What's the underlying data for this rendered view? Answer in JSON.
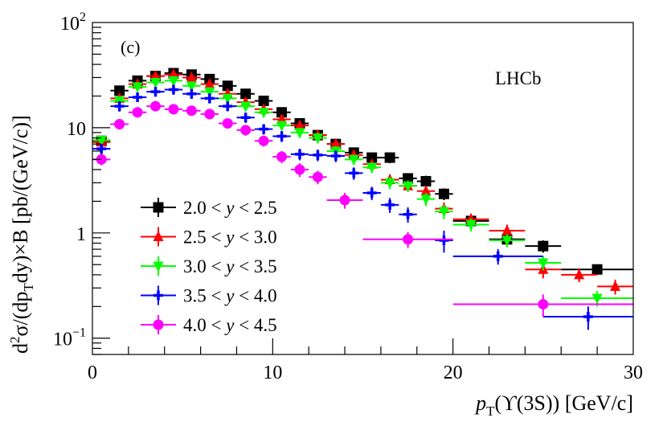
{
  "chart_data": {
    "type": "scatter",
    "panel_label": "(c)",
    "experiment_label": "LHCb",
    "xlabel": {
      "main": "p",
      "sub": "T",
      "rest": "(ϒ(3S)) [GeV/c]"
    },
    "ylabel": {
      "p1": "d",
      "sup": "2",
      "p2": "σ/(dp",
      "sub": "T",
      "p3": "dy)×B [pb/(GeV/c)]"
    },
    "xlim": [
      0,
      30
    ],
    "ylim": [
      0.07,
      100
    ],
    "yscale": "log",
    "x_ticks": [
      "0",
      "10",
      "20",
      "30"
    ],
    "y_ticks": [
      {
        "value": 100,
        "base": "10",
        "exp": "2"
      },
      {
        "value": 10,
        "base": "10",
        "exp": ""
      },
      {
        "value": 1,
        "base": "1",
        "exp": ""
      },
      {
        "value": 0.1,
        "base": "10",
        "exp": "−1"
      }
    ],
    "legend_position": "bottom-left",
    "series": [
      {
        "name": "2.0 < y < 2.5",
        "label_pre": "2.0 < ",
        "label_var": "y",
        "label_post": " < 2.5",
        "color": "#000000",
        "marker": "square",
        "points": [
          {
            "x": 0.5,
            "xerr": 0.5,
            "y": 7.5,
            "yerr": 0.7
          },
          {
            "x": 1.5,
            "xerr": 0.5,
            "y": 22.5,
            "yerr": 2.5
          },
          {
            "x": 2.5,
            "xerr": 0.5,
            "y": 28,
            "yerr": 3
          },
          {
            "x": 3.5,
            "xerr": 0.5,
            "y": 31,
            "yerr": 3
          },
          {
            "x": 4.5,
            "xerr": 0.5,
            "y": 33,
            "yerr": 3
          },
          {
            "x": 5.5,
            "xerr": 0.5,
            "y": 32,
            "yerr": 3
          },
          {
            "x": 6.5,
            "xerr": 0.5,
            "y": 29,
            "yerr": 3
          },
          {
            "x": 7.5,
            "xerr": 0.5,
            "y": 25,
            "yerr": 2.5
          },
          {
            "x": 8.5,
            "xerr": 0.5,
            "y": 21,
            "yerr": 2
          },
          {
            "x": 9.5,
            "xerr": 0.5,
            "y": 18,
            "yerr": 2
          },
          {
            "x": 10.5,
            "xerr": 0.5,
            "y": 14,
            "yerr": 1.5
          },
          {
            "x": 11.5,
            "xerr": 0.5,
            "y": 11,
            "yerr": 1.2
          },
          {
            "x": 12.5,
            "xerr": 0.5,
            "y": 8.5,
            "yerr": 1
          },
          {
            "x": 13.5,
            "xerr": 0.5,
            "y": 7,
            "yerr": 0.8
          },
          {
            "x": 14.5,
            "xerr": 0.5,
            "y": 5.8,
            "yerr": 0.7
          },
          {
            "x": 15.5,
            "xerr": 0.5,
            "y": 5.2,
            "yerr": 0.6
          },
          {
            "x": 16.5,
            "xerr": 0.5,
            "y": 5.2,
            "yerr": 0.6
          },
          {
            "x": 17.5,
            "xerr": 0.5,
            "y": 3.3,
            "yerr": 0.4
          },
          {
            "x": 18.5,
            "xerr": 0.5,
            "y": 3.1,
            "yerr": 0.4
          },
          {
            "x": 19.5,
            "xerr": 0.5,
            "y": 2.35,
            "yerr": 0.3
          },
          {
            "x": 21,
            "xerr": 1,
            "y": 1.3,
            "yerr": 0.18
          },
          {
            "x": 23,
            "xerr": 1,
            "y": 0.87,
            "yerr": 0.12
          },
          {
            "x": 25,
            "xerr": 1,
            "y": 0.75,
            "yerr": 0.1
          },
          {
            "x": 28,
            "xerr": 2,
            "y": 0.45,
            "yerr": 0.05
          }
        ]
      },
      {
        "name": "2.5 < y < 3.0",
        "label_pre": "2.5 < ",
        "label_var": "y",
        "label_post": " < 3.0",
        "color": "#ff0000",
        "marker": "triangle-up",
        "points": [
          {
            "x": 0.5,
            "xerr": 0.5,
            "y": 7.3,
            "yerr": 0.7
          },
          {
            "x": 1.5,
            "xerr": 0.5,
            "y": 19,
            "yerr": 2
          },
          {
            "x": 2.5,
            "xerr": 0.5,
            "y": 26,
            "yerr": 2.5
          },
          {
            "x": 3.5,
            "xerr": 0.5,
            "y": 31,
            "yerr": 3
          },
          {
            "x": 4.5,
            "xerr": 0.5,
            "y": 32,
            "yerr": 3
          },
          {
            "x": 5.5,
            "xerr": 0.5,
            "y": 30,
            "yerr": 3
          },
          {
            "x": 6.5,
            "xerr": 0.5,
            "y": 26,
            "yerr": 2.5
          },
          {
            "x": 7.5,
            "xerr": 0.5,
            "y": 21,
            "yerr": 2
          },
          {
            "x": 8.5,
            "xerr": 0.5,
            "y": 17.5,
            "yerr": 1.8
          },
          {
            "x": 9.5,
            "xerr": 0.5,
            "y": 15,
            "yerr": 1.5
          },
          {
            "x": 10.5,
            "xerr": 0.5,
            "y": 12,
            "yerr": 1.3
          },
          {
            "x": 11.5,
            "xerr": 0.5,
            "y": 10.5,
            "yerr": 1.1
          },
          {
            "x": 12.5,
            "xerr": 0.5,
            "y": 8.5,
            "yerr": 0.9
          },
          {
            "x": 13.5,
            "xerr": 0.5,
            "y": 7,
            "yerr": 0.8
          },
          {
            "x": 14.5,
            "xerr": 0.5,
            "y": 5.5,
            "yerr": 0.6
          },
          {
            "x": 15.5,
            "xerr": 0.5,
            "y": 4.5,
            "yerr": 0.5
          },
          {
            "x": 16.5,
            "xerr": 0.5,
            "y": 3.2,
            "yerr": 0.4
          },
          {
            "x": 17.5,
            "xerr": 0.5,
            "y": 2.8,
            "yerr": 0.35
          },
          {
            "x": 18.5,
            "xerr": 0.5,
            "y": 2.5,
            "yerr": 0.3
          },
          {
            "x": 19.5,
            "xerr": 0.5,
            "y": 1.7,
            "yerr": 0.25
          },
          {
            "x": 21,
            "xerr": 1,
            "y": 1.35,
            "yerr": 0.18
          },
          {
            "x": 23,
            "xerr": 1,
            "y": 1.05,
            "yerr": 0.15
          },
          {
            "x": 25,
            "xerr": 1,
            "y": 0.45,
            "yerr": 0.08
          },
          {
            "x": 27,
            "xerr": 1,
            "y": 0.4,
            "yerr": 0.06
          },
          {
            "x": 29,
            "xerr": 1,
            "y": 0.31,
            "yerr": 0.05
          }
        ]
      },
      {
        "name": "3.0 < y < 3.5",
        "label_pre": "3.0 < ",
        "label_var": "y",
        "label_post": " < 3.5",
        "color": "#00ff00",
        "marker": "triangle-down",
        "points": [
          {
            "x": 0.5,
            "xerr": 0.5,
            "y": 7.6,
            "yerr": 0.7
          },
          {
            "x": 1.5,
            "xerr": 0.5,
            "y": 18,
            "yerr": 2
          },
          {
            "x": 2.5,
            "xerr": 0.5,
            "y": 24.5,
            "yerr": 2.5
          },
          {
            "x": 3.5,
            "xerr": 0.5,
            "y": 27,
            "yerr": 2.8
          },
          {
            "x": 4.5,
            "xerr": 0.5,
            "y": 28,
            "yerr": 2.8
          },
          {
            "x": 5.5,
            "xerr": 0.5,
            "y": 25,
            "yerr": 2.5
          },
          {
            "x": 6.5,
            "xerr": 0.5,
            "y": 22,
            "yerr": 2.2
          },
          {
            "x": 7.5,
            "xerr": 0.5,
            "y": 19,
            "yerr": 2
          },
          {
            "x": 8.5,
            "xerr": 0.5,
            "y": 16,
            "yerr": 1.7
          },
          {
            "x": 9.5,
            "xerr": 0.5,
            "y": 14,
            "yerr": 1.5
          },
          {
            "x": 10.5,
            "xerr": 0.5,
            "y": 10.5,
            "yerr": 1.1
          },
          {
            "x": 11.5,
            "xerr": 0.5,
            "y": 9,
            "yerr": 1
          },
          {
            "x": 12.5,
            "xerr": 0.5,
            "y": 8,
            "yerr": 0.9
          },
          {
            "x": 13.5,
            "xerr": 0.5,
            "y": 6,
            "yerr": 0.7
          },
          {
            "x": 14.5,
            "xerr": 0.5,
            "y": 5,
            "yerr": 0.6
          },
          {
            "x": 15.5,
            "xerr": 0.5,
            "y": 4.2,
            "yerr": 0.5
          },
          {
            "x": 16.5,
            "xerr": 0.5,
            "y": 3,
            "yerr": 0.4
          },
          {
            "x": 17.5,
            "xerr": 0.5,
            "y": 2.8,
            "yerr": 0.35
          },
          {
            "x": 18.5,
            "xerr": 0.5,
            "y": 2.1,
            "yerr": 0.3
          },
          {
            "x": 19.5,
            "xerr": 0.5,
            "y": 1.6,
            "yerr": 0.25
          },
          {
            "x": 21,
            "xerr": 1,
            "y": 1.2,
            "yerr": 0.17
          },
          {
            "x": 23,
            "xerr": 1,
            "y": 0.85,
            "yerr": 0.12
          },
          {
            "x": 25,
            "xerr": 1,
            "y": 0.52,
            "yerr": 0.08
          },
          {
            "x": 28,
            "xerr": 2,
            "y": 0.24,
            "yerr": 0.04
          }
        ]
      },
      {
        "name": "3.5 < y < 4.0",
        "label_pre": "3.5 < ",
        "label_var": "y",
        "label_post": " < 4.0",
        "color": "#0000ff",
        "marker": "cross",
        "points": [
          {
            "x": 0.5,
            "xerr": 0.5,
            "y": 6.3,
            "yerr": 0.7
          },
          {
            "x": 1.5,
            "xerr": 0.5,
            "y": 16,
            "yerr": 1.8
          },
          {
            "x": 2.5,
            "xerr": 0.5,
            "y": 19.5,
            "yerr": 2
          },
          {
            "x": 3.5,
            "xerr": 0.5,
            "y": 22,
            "yerr": 2.3
          },
          {
            "x": 4.5,
            "xerr": 0.5,
            "y": 23,
            "yerr": 2.4
          },
          {
            "x": 5.5,
            "xerr": 0.5,
            "y": 21,
            "yerr": 2.2
          },
          {
            "x": 6.5,
            "xerr": 0.5,
            "y": 19,
            "yerr": 2
          },
          {
            "x": 7.5,
            "xerr": 0.5,
            "y": 16,
            "yerr": 1.7
          },
          {
            "x": 8.5,
            "xerr": 0.5,
            "y": 12.5,
            "yerr": 1.4
          },
          {
            "x": 9.5,
            "xerr": 0.5,
            "y": 9.7,
            "yerr": 1.1
          },
          {
            "x": 10.5,
            "xerr": 0.5,
            "y": 8.3,
            "yerr": 1
          },
          {
            "x": 11.5,
            "xerr": 0.5,
            "y": 5.6,
            "yerr": 0.7
          },
          {
            "x": 12.5,
            "xerr": 0.5,
            "y": 5.5,
            "yerr": 0.7
          },
          {
            "x": 13.5,
            "xerr": 0.5,
            "y": 5.4,
            "yerr": 0.7
          },
          {
            "x": 14.5,
            "xerr": 0.5,
            "y": 3.7,
            "yerr": 0.5
          },
          {
            "x": 15.5,
            "xerr": 0.5,
            "y": 2.4,
            "yerr": 0.35
          },
          {
            "x": 16.5,
            "xerr": 0.5,
            "y": 1.85,
            "yerr": 0.3
          },
          {
            "x": 17.5,
            "xerr": 0.5,
            "y": 1.5,
            "yerr": 0.25
          },
          {
            "x": 19.5,
            "xerr": 0.5,
            "y": 0.85,
            "yerr": 0.2
          },
          {
            "x": 22.5,
            "xerr": 2.5,
            "y": 0.6,
            "yerr": 0.1
          },
          {
            "x": 27.5,
            "xerr": 2.5,
            "y": 0.16,
            "yerr": 0.04
          }
        ]
      },
      {
        "name": "4.0 < y < 4.5",
        "label_pre": "4.0 < ",
        "label_var": "y",
        "label_post": " < 4.5",
        "color": "#ff00ff",
        "marker": "circle",
        "points": [
          {
            "x": 0.5,
            "xerr": 0.5,
            "y": 5,
            "yerr": 0.6
          },
          {
            "x": 1.5,
            "xerr": 0.5,
            "y": 10.8,
            "yerr": 1.2
          },
          {
            "x": 2.5,
            "xerr": 0.5,
            "y": 14,
            "yerr": 1.5
          },
          {
            "x": 3.5,
            "xerr": 0.5,
            "y": 16,
            "yerr": 1.7
          },
          {
            "x": 4.5,
            "xerr": 0.5,
            "y": 15,
            "yerr": 1.6
          },
          {
            "x": 5.5,
            "xerr": 0.5,
            "y": 14.5,
            "yerr": 1.5
          },
          {
            "x": 6.5,
            "xerr": 0.5,
            "y": 13.5,
            "yerr": 1.5
          },
          {
            "x": 7.5,
            "xerr": 0.5,
            "y": 11,
            "yerr": 1.2
          },
          {
            "x": 8.5,
            "xerr": 0.5,
            "y": 9.5,
            "yerr": 1.1
          },
          {
            "x": 9.5,
            "xerr": 0.5,
            "y": 7.5,
            "yerr": 0.9
          },
          {
            "x": 10.5,
            "xerr": 0.5,
            "y": 5.3,
            "yerr": 0.7
          },
          {
            "x": 11.5,
            "xerr": 0.5,
            "y": 4,
            "yerr": 0.6
          },
          {
            "x": 12.5,
            "xerr": 0.5,
            "y": 3.4,
            "yerr": 0.5
          },
          {
            "x": 14,
            "xerr": 1,
            "y": 2.05,
            "yerr": 0.35
          },
          {
            "x": 17.5,
            "xerr": 2.5,
            "y": 0.87,
            "yerr": 0.15
          },
          {
            "x": 25,
            "xerr": 5,
            "y": 0.21,
            "yerr": 0.05
          }
        ]
      }
    ]
  }
}
